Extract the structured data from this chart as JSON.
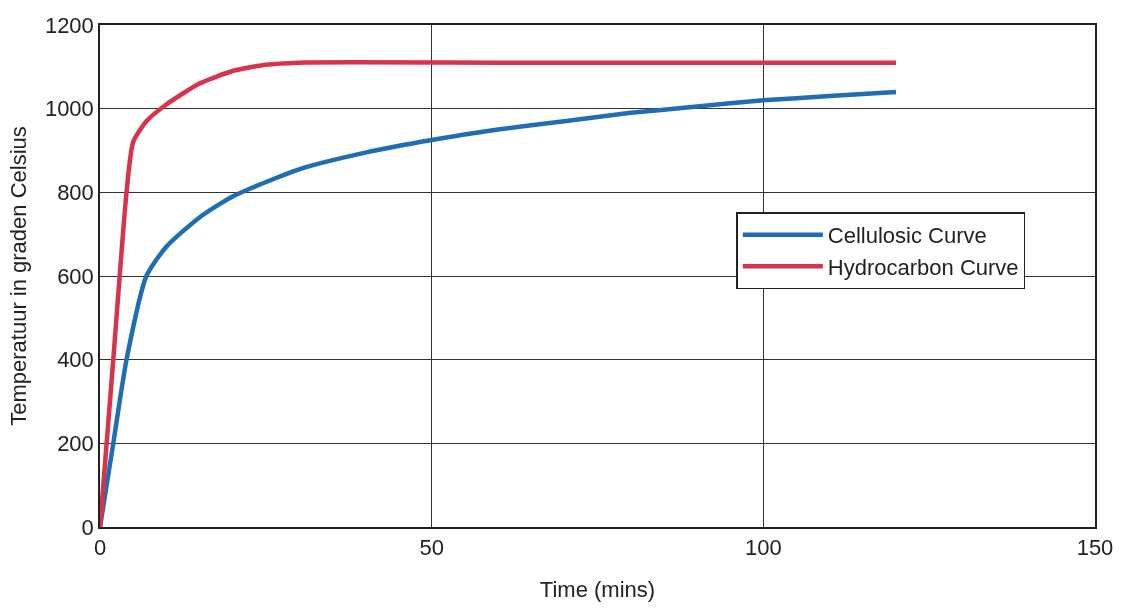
{
  "chart_data": {
    "type": "line",
    "xlabel": "Time (mins)",
    "ylabel": "Temperatuur in graden Celsius",
    "xlim": [
      0,
      150
    ],
    "xticks": [
      0,
      50,
      100,
      150
    ],
    "ylim": [
      0,
      1200
    ],
    "yticks": [
      0,
      200,
      400,
      600,
      800,
      1000,
      1200
    ],
    "grid": true,
    "legend": "right",
    "marker": "none",
    "line_style": "solid",
    "series": [
      {
        "name": "Cellulosic Curve",
        "color": "#1f6db5",
        "x": [
          0,
          2,
          4,
          7,
          10,
          15,
          20,
          30,
          40,
          50,
          60,
          70,
          80,
          90,
          100,
          110,
          120
        ],
        "values": [
          0,
          200,
          400,
          600,
          670,
          740,
          790,
          855,
          895,
          925,
          950,
          970,
          990,
          1005,
          1020,
          1030,
          1040
        ]
      },
      {
        "name": "Hydrocarbon Curve",
        "color": "#d8334a",
        "x": [
          0,
          2,
          4,
          5,
          7,
          10,
          15,
          20,
          25,
          30,
          60,
          90,
          120
        ],
        "values": [
          0,
          400,
          800,
          920,
          970,
          1010,
          1060,
          1090,
          1105,
          1110,
          1110,
          1110,
          1110
        ]
      }
    ]
  }
}
